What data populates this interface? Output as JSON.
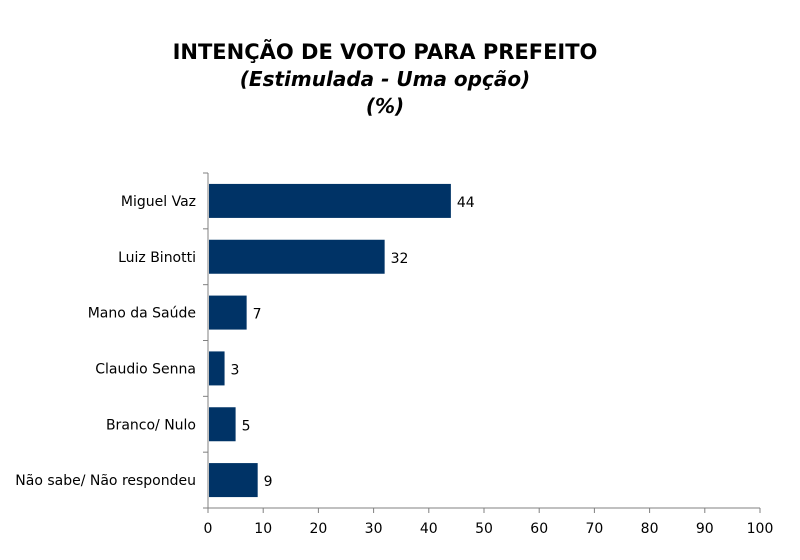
{
  "chart_data": {
    "type": "bar",
    "orientation": "horizontal",
    "title": "INTENÇÃO DE VOTO PARA PREFEITO",
    "subtitle": "(Estimulada - Uma opção)",
    "unit": "(%)",
    "categories": [
      "Miguel Vaz",
      "Luiz Binotti",
      "Mano da Saúde",
      "Claudio Senna",
      "Branco/ Nulo",
      "Não sabe/ Não respondeu"
    ],
    "values": [
      44,
      32,
      7,
      3,
      5,
      9
    ],
    "value_labels": [
      "44",
      "32",
      "7",
      "3",
      "5",
      "9"
    ],
    "xlim": [
      0,
      100
    ],
    "xticks": [
      "0",
      "10",
      "20",
      "30",
      "40",
      "50",
      "60",
      "70",
      "80",
      "90",
      "100"
    ],
    "grid": false,
    "legend": "none",
    "bar_color": "#003366"
  }
}
